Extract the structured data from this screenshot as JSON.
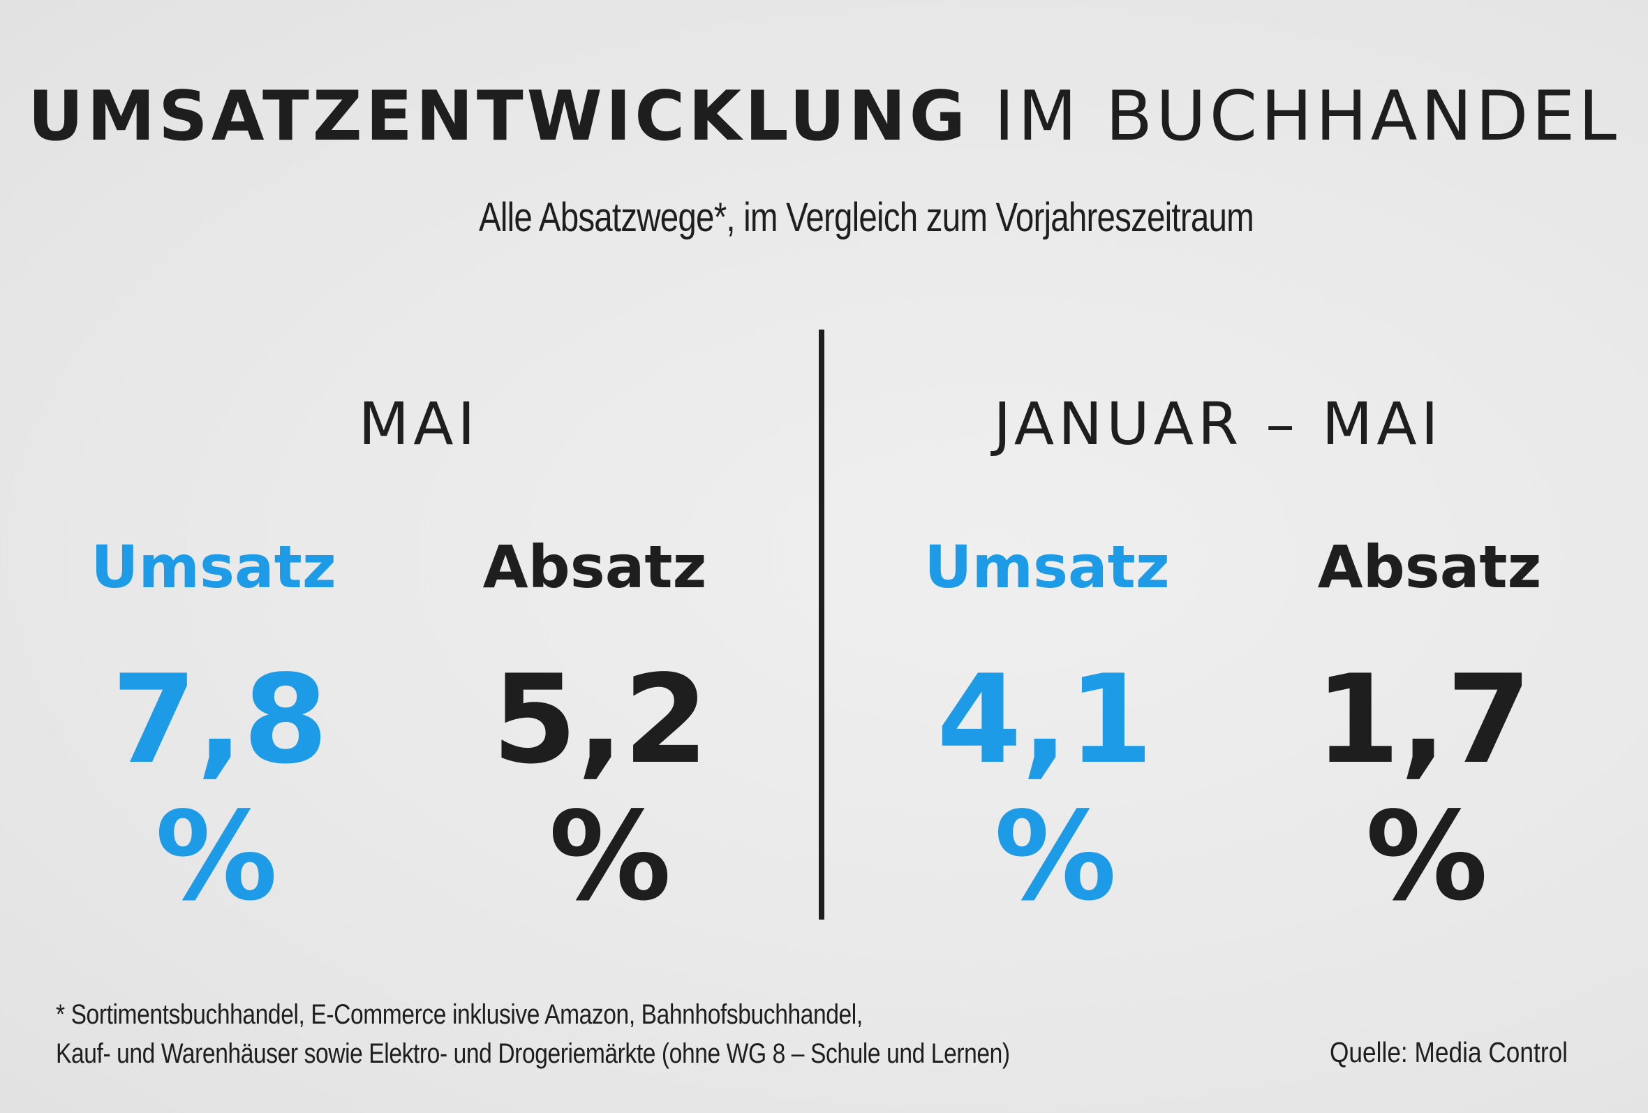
{
  "header": {
    "title_bold": "UMSATZENTWICKLUNG",
    "title_light": "IM BUCHHANDEL",
    "subtitle": "Alle Absatzwege*, im Vergleich zum Vorjahreszeitraum"
  },
  "colors": {
    "umsatz": "#1d9be6",
    "absatz": "#1e1e1e",
    "background": "#eaeaea"
  },
  "sections": [
    {
      "period": "MAI",
      "umsatz": {
        "label": "Umsatz",
        "value": "7,8",
        "unit": "%"
      },
      "absatz": {
        "label": "Absatz",
        "value": "5,2",
        "unit": "%"
      }
    },
    {
      "period": "JANUAR – MAI",
      "umsatz": {
        "label": "Umsatz",
        "value": "4,1",
        "unit": "%"
      },
      "absatz": {
        "label": "Absatz",
        "value": "1,7",
        "unit": "%"
      }
    }
  ],
  "footer": {
    "footnote_line1": "* Sortimentsbuchhandel, E-Commerce inklusive Amazon, Bahnhofsbuchhandel,",
    "footnote_line2": "Kauf- und Warenhäuser sowie Elektro- und Drogeriemärkte (ohne WG 8 – Schule und Lernen)",
    "source": "Quelle: Media Control"
  }
}
